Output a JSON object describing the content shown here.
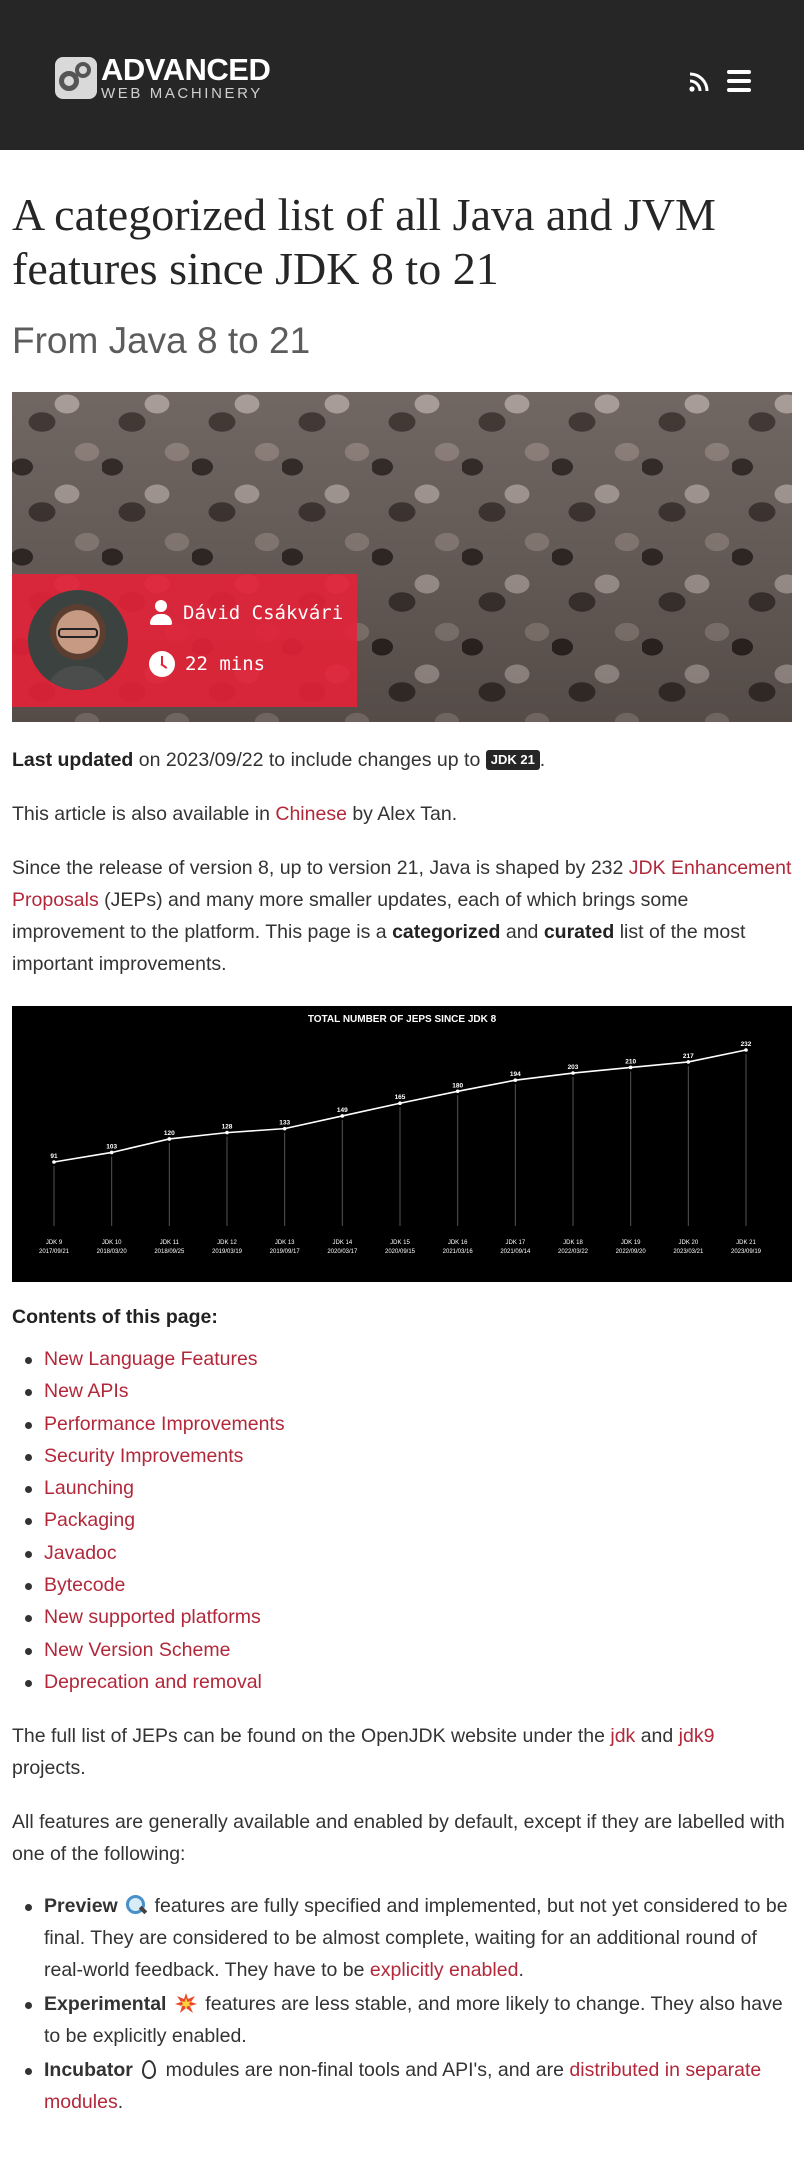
{
  "header": {
    "logo_line1": "ADVANCED",
    "logo_line2": "WEB MACHINERY",
    "icons": [
      "rss-icon",
      "hamburger-menu-icon"
    ]
  },
  "article": {
    "title": "A categorized list of all Java and JVM features since JDK 8 to 21",
    "subtitle": "From Java 8 to 21",
    "author": "Dávid Csákvári",
    "read_time": "22 mins",
    "updated": {
      "label": "Last updated",
      "text_before": " on 2023/09/22 to include changes up to ",
      "badge": "JDK 21",
      "text_after": "."
    },
    "translation": {
      "before": "This article is also available in ",
      "link": "Chinese",
      "after": " by Alex Tan."
    },
    "intro": {
      "before": "Since the release of version 8, up to version 21, Java is shaped by 232 ",
      "link": "JDK Enhancement Proposals",
      "middle": " (JEPs) and many more smaller updates, each of which brings some improvement to the platform. This page is a ",
      "bold1": "categorized",
      "and": " and ",
      "bold2": "curated",
      "after": " list of the most important improvements."
    },
    "contents_title": "Contents of this page:",
    "toc": [
      "New Language Features",
      "New APIs",
      "Performance Improvements",
      "Security Improvements",
      "Launching",
      "Packaging",
      "Javadoc",
      "Bytecode",
      "New supported platforms",
      "New Version Scheme",
      "Deprecation and removal"
    ],
    "fulllist": {
      "before": "The full list of JEPs can be found on the OpenJDK website under the ",
      "link1": "jdk",
      "and": " and ",
      "link2": "jdk9",
      "after": " projects."
    },
    "availability": "All features are generally available and enabled by default, except if they are labelled with one of the following:",
    "labels": {
      "preview": {
        "name": "Preview",
        "icon": "magnifying-glass-icon",
        "text": " features are fully specified and implemented, but not yet considered to be final. They are considered to be almost complete, waiting for an additional round of real-world feedback. They have to be ",
        "link": "explicitly enabled",
        "after": "."
      },
      "experimental": {
        "name": "Experimental",
        "icon": "collision-icon",
        "text": " features are less stable, and more likely to change. They also have to be explicitly enabled."
      },
      "incubator": {
        "name": "Incubator",
        "icon": "egg-icon",
        "text": " modules are non-final tools and API's, and are ",
        "link": "distributed in separate modules",
        "after": "."
      }
    }
  },
  "colors": {
    "header_bg": "#262626",
    "link": "#b2283a",
    "author_box": "#e52137"
  },
  "chart_data": {
    "type": "line",
    "title": "TOTAL NUMBER OF JEPS SINCE JDK 8",
    "categories": [
      "JDK 9",
      "JDK 10",
      "JDK 11",
      "JDK 12",
      "JDK 13",
      "JDK 14",
      "JDK 15",
      "JDK 16",
      "JDK 17",
      "JDK 18",
      "JDK 19",
      "JDK 20",
      "JDK 21"
    ],
    "dates": [
      "2017/09/21",
      "2018/03/20",
      "2018/09/25",
      "2019/03/19",
      "2019/09/17",
      "2020/03/17",
      "2020/09/15",
      "2021/03/16",
      "2021/09/14",
      "2022/03/22",
      "2022/09/20",
      "2023/03/21",
      "2023/09/19"
    ],
    "values": [
      91,
      103,
      120,
      128,
      133,
      149,
      165,
      180,
      194,
      203,
      210,
      217,
      232
    ],
    "ylim": [
      0,
      240
    ],
    "grid": false,
    "background": "#000000"
  }
}
